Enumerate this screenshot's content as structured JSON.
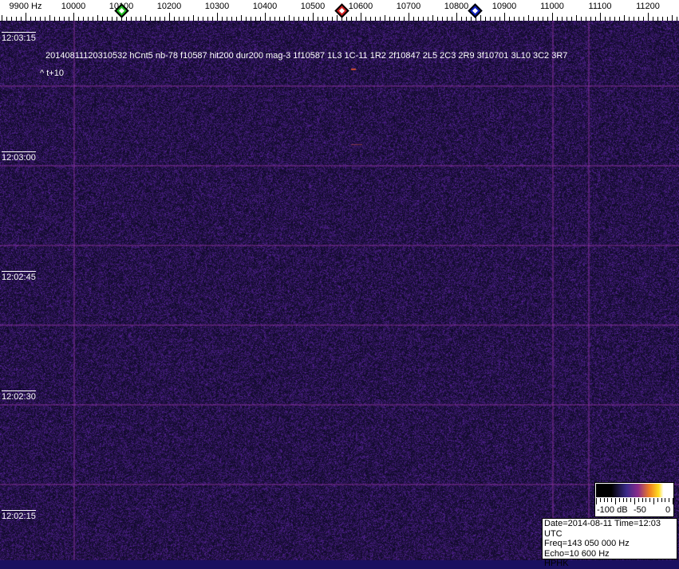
{
  "freq_axis": {
    "labels": [
      "9900 Hz",
      "10000",
      "10100",
      "10200",
      "10300",
      "10400",
      "10500",
      "10600",
      "10700",
      "10800",
      "10900",
      "11000",
      "11100",
      "11200"
    ],
    "values": [
      9900,
      10000,
      10100,
      10200,
      10300,
      10400,
      10500,
      10600,
      10700,
      10800,
      10900,
      11000,
      11100,
      11200
    ]
  },
  "markers": [
    {
      "name": "green",
      "freq": 10100,
      "color": "#20c020"
    },
    {
      "name": "red",
      "freq": 10560,
      "color": "#d02020"
    },
    {
      "name": "blue",
      "freq": 10838,
      "color": "#1020c0"
    }
  ],
  "time_labels": [
    "12:03:15",
    "12:03:00",
    "12:02:45",
    "12:02:30",
    "12:02:15"
  ],
  "detection_text": "20140811120310532 hCnt5 nb-78 f10587 hit200 dur200 mag-3 1f10587 1L3 1C-11 1R2 2f10847 2L5 2C3 2R9 3f10701 3L10 3C2 3R7",
  "offset_text": "^ t+10",
  "scale": {
    "labels": [
      "-100 dB",
      "-50",
      "0"
    ]
  },
  "info": {
    "date_time": "Date=2014-08-11 Time=12:03 UTC",
    "freq": "Freq=143 050 000 Hz",
    "echo": "Echo=10 600 Hz",
    "station": "HPHK"
  },
  "colors": {
    "background": "#1a1060",
    "grid_line": "#6a2a8a"
  }
}
